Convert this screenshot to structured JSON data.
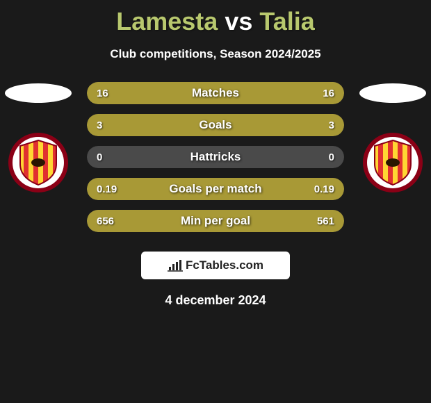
{
  "title": {
    "player1": "Lamesta",
    "vs": "vs",
    "player2": "Talia",
    "player1_color": "#b8c86e",
    "player2_color": "#b8c86e",
    "vs_color": "#ffffff",
    "fontsize": 36
  },
  "subtitle": "Club competitions, Season 2024/2025",
  "background_color": "#1a1a1a",
  "bar_colors": {
    "left": "#a89936",
    "right": "#a89936",
    "neutral": "#4a4a4a"
  },
  "stats": [
    {
      "label": "Matches",
      "left_val": "16",
      "right_val": "16",
      "left_pct": 50,
      "right_pct": 50
    },
    {
      "label": "Goals",
      "left_val": "3",
      "right_val": "3",
      "left_pct": 50,
      "right_pct": 50
    },
    {
      "label": "Hattricks",
      "left_val": "0",
      "right_val": "0",
      "left_pct": 0,
      "right_pct": 0
    },
    {
      "label": "Goals per match",
      "left_val": "0.19",
      "right_val": "0.19",
      "left_pct": 50,
      "right_pct": 50
    },
    {
      "label": "Min per goal",
      "left_val": "656",
      "right_val": "561",
      "left_pct": 54,
      "right_pct": 46
    }
  ],
  "club_badge": {
    "outer_color": "#8b0016",
    "mid_color": "#ffffff",
    "stripe_a": "#ffd633",
    "stripe_b": "#e03030"
  },
  "logo": {
    "text": "FcTables.com",
    "box_bg": "#ffffff",
    "text_color": "#222222",
    "icon_color": "#222222"
  },
  "date": "4 december 2024"
}
